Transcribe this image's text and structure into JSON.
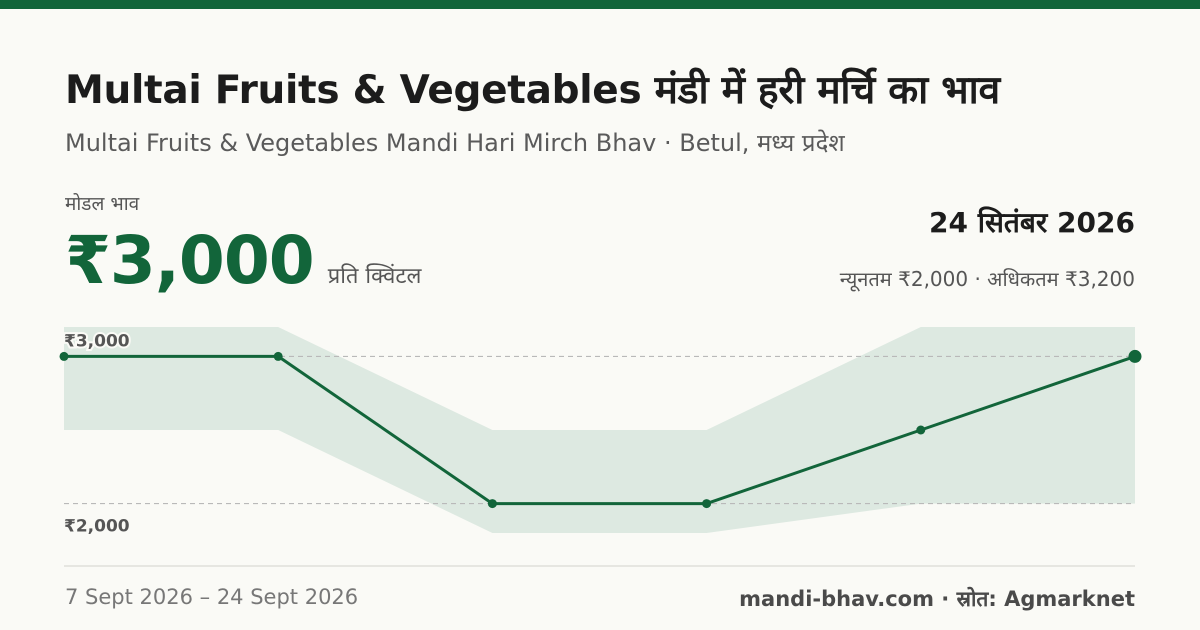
{
  "colors": {
    "brand": "#12653a",
    "band": "#dde9e1",
    "grid": "#b9b9b9",
    "background": "#fafaf6"
  },
  "header": {
    "title": "Multai Fruits & Vegetables मंडी में हरी मर्चि का भाव",
    "subtitle": "Multai Fruits & Vegetables Mandi Hari Mirch Bhav · Betul, मध्य प्रदेश"
  },
  "summary": {
    "metric_label": "मोडल भाव",
    "price": "₹3,000",
    "unit": "प्रति क्विंटल",
    "date": "24 सितंबर 2026",
    "min_max": "न्यूनतम ₹2,000 · अधिकतम ₹3,200"
  },
  "chart_data": {
    "type": "line",
    "x": [
      "7 Sept 2026",
      "",
      "",
      "",
      "",
      "24 Sept 2026"
    ],
    "series": [
      {
        "values": [
          3000,
          3000,
          2000,
          2000,
          2500,
          3000
        ]
      }
    ],
    "band": {
      "min": [
        2500,
        2500,
        1800,
        1800,
        2000,
        2000
      ],
      "max": [
        3200,
        3200,
        2500,
        2500,
        3200,
        3200
      ]
    },
    "y_ticks": [
      {
        "value": 3000,
        "label": "₹3,000"
      },
      {
        "value": 2000,
        "label": "₹2,000"
      }
    ],
    "ylim": [
      1800,
      3200
    ],
    "grid": true
  },
  "footer": {
    "date_range": "7 Sept 2026 – 24 Sept 2026",
    "source": "mandi-bhav.com · स्रोत: Agmarknet"
  }
}
